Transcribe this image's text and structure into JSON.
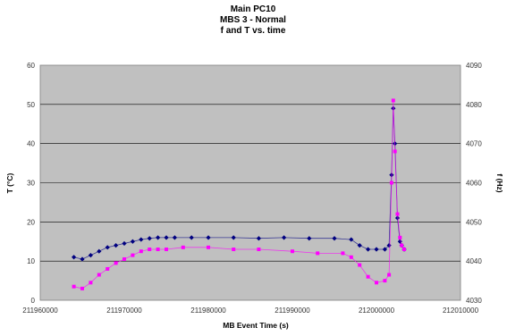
{
  "chart_data": {
    "type": "scatter",
    "title_lines": [
      "Main PC10",
      "MBS 3 - Normal",
      "f and T vs. time"
    ],
    "xlabel": "MB Event Time (s)",
    "ylabel_left": "T (°C)",
    "ylabel_right": "f (Hz)",
    "xlim": [
      211960000,
      212010000
    ],
    "ylim_left": [
      0,
      60
    ],
    "ylim_right": [
      4030,
      4090
    ],
    "x_ticks": [
      "211960000",
      "211970000",
      "211980000",
      "211990000",
      "212000000",
      "212010000"
    ],
    "x_tick_values": [
      211960000,
      211970000,
      211980000,
      211990000,
      212000000,
      212010000
    ],
    "y_left_ticks": [
      "0",
      "10",
      "20",
      "30",
      "40",
      "50",
      "60"
    ],
    "y_left_tick_values": [
      0,
      10,
      20,
      30,
      40,
      50,
      60
    ],
    "y_right_ticks": [
      "4030",
      "4040",
      "4050",
      "4060",
      "4070",
      "4080",
      "4090"
    ],
    "y_right_tick_values": [
      4030,
      4040,
      4050,
      4060,
      4070,
      4080,
      4090
    ],
    "grid": "horizontal",
    "plot_background": "#c0c0c0",
    "series": [
      {
        "axis": "right",
        "color": "#000080",
        "marker": "diamond",
        "x": [
          211964000,
          211965000,
          211966000,
          211967000,
          211968000,
          211969000,
          211970000,
          211971000,
          211972000,
          211973000,
          211974000,
          211975000,
          211976000,
          211978000,
          211980000,
          211983000,
          211986000,
          211989000,
          211992000,
          211995000,
          211997000,
          211998000,
          211999000,
          212000000,
          212001000,
          212001500,
          212001800,
          212002000,
          212002200,
          212002500,
          212002800,
          212003000,
          212003300
        ],
        "values": [
          4041,
          4040.5,
          4041.5,
          4042.5,
          4043.5,
          4044,
          4044.5,
          4045,
          4045.5,
          4045.8,
          4046,
          4046,
          4046,
          4046,
          4046,
          4046,
          4045.8,
          4046,
          4045.8,
          4045.8,
          4045.5,
          4044,
          4043,
          4043,
          4043,
          4044,
          4062,
          4079,
          4070,
          4051,
          4045,
          4044,
          4043
        ]
      },
      {
        "axis": "left",
        "color": "#ff00ff",
        "marker": "square",
        "x": [
          211964000,
          211965000,
          211966000,
          211967000,
          211968000,
          211969000,
          211970000,
          211971000,
          211972000,
          211973000,
          211974000,
          211975000,
          211977000,
          211980000,
          211983000,
          211986000,
          211990000,
          211993000,
          211996000,
          211997000,
          211998000,
          211999000,
          212000000,
          212001000,
          212001500,
          212001800,
          212002000,
          212002200,
          212002500,
          212002800,
          212003000,
          212003300
        ],
        "values": [
          3.5,
          3,
          4.5,
          6.5,
          8,
          9.5,
          10.5,
          11.5,
          12.5,
          13,
          13,
          13,
          13.5,
          13.5,
          13,
          13,
          12.5,
          12,
          12,
          11,
          9,
          6,
          4.5,
          5,
          6.5,
          30,
          51,
          38,
          22,
          16,
          14,
          13
        ]
      }
    ]
  }
}
